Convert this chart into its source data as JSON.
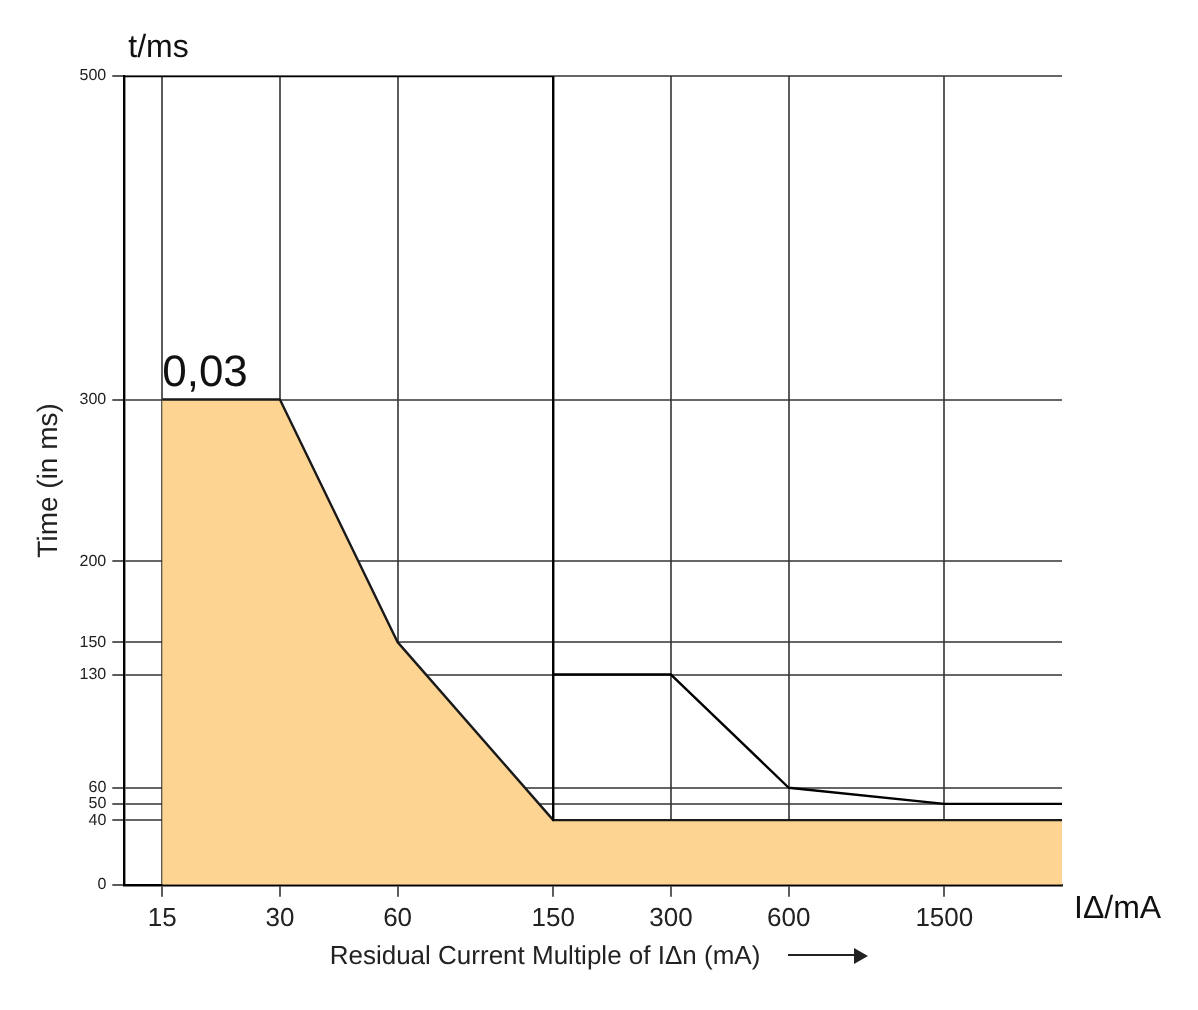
{
  "chart_data": {
    "type": "area",
    "xlabel": "Residual Current Multiple of IΔn (mA)",
    "ylabel": "Time (in ms)",
    "annotations": [
      "t/ms",
      "IΔ/mA"
    ],
    "series": [
      {
        "type": "area",
        "name": "0,03",
        "color": "#fed492",
        "x": [
          15,
          30,
          60,
          150,
          3000
        ],
        "values": [
          300,
          300,
          150,
          40,
          40
        ]
      },
      {
        "type": "line",
        "color": "#000000",
        "x": [
          150,
          300,
          600,
          1500,
          3000
        ],
        "values": [
          130,
          130,
          60,
          50,
          50
        ]
      },
      {
        "type": "line",
        "color": "#000000",
        "x": [
          12,
          150,
          150
        ],
        "values": [
          500,
          500,
          40
        ]
      }
    ],
    "log": "x",
    "xlim": [
      12,
      3000
    ],
    "xticks": [
      15,
      30,
      60,
      150,
      300,
      600,
      1500
    ],
    "ylim": [
      0,
      500
    ],
    "yticks": [
      0,
      40,
      50,
      60,
      130,
      150,
      200,
      300,
      500
    ],
    "grid": true,
    "legend": false,
    "marker": "none",
    "line_style": "solid"
  }
}
